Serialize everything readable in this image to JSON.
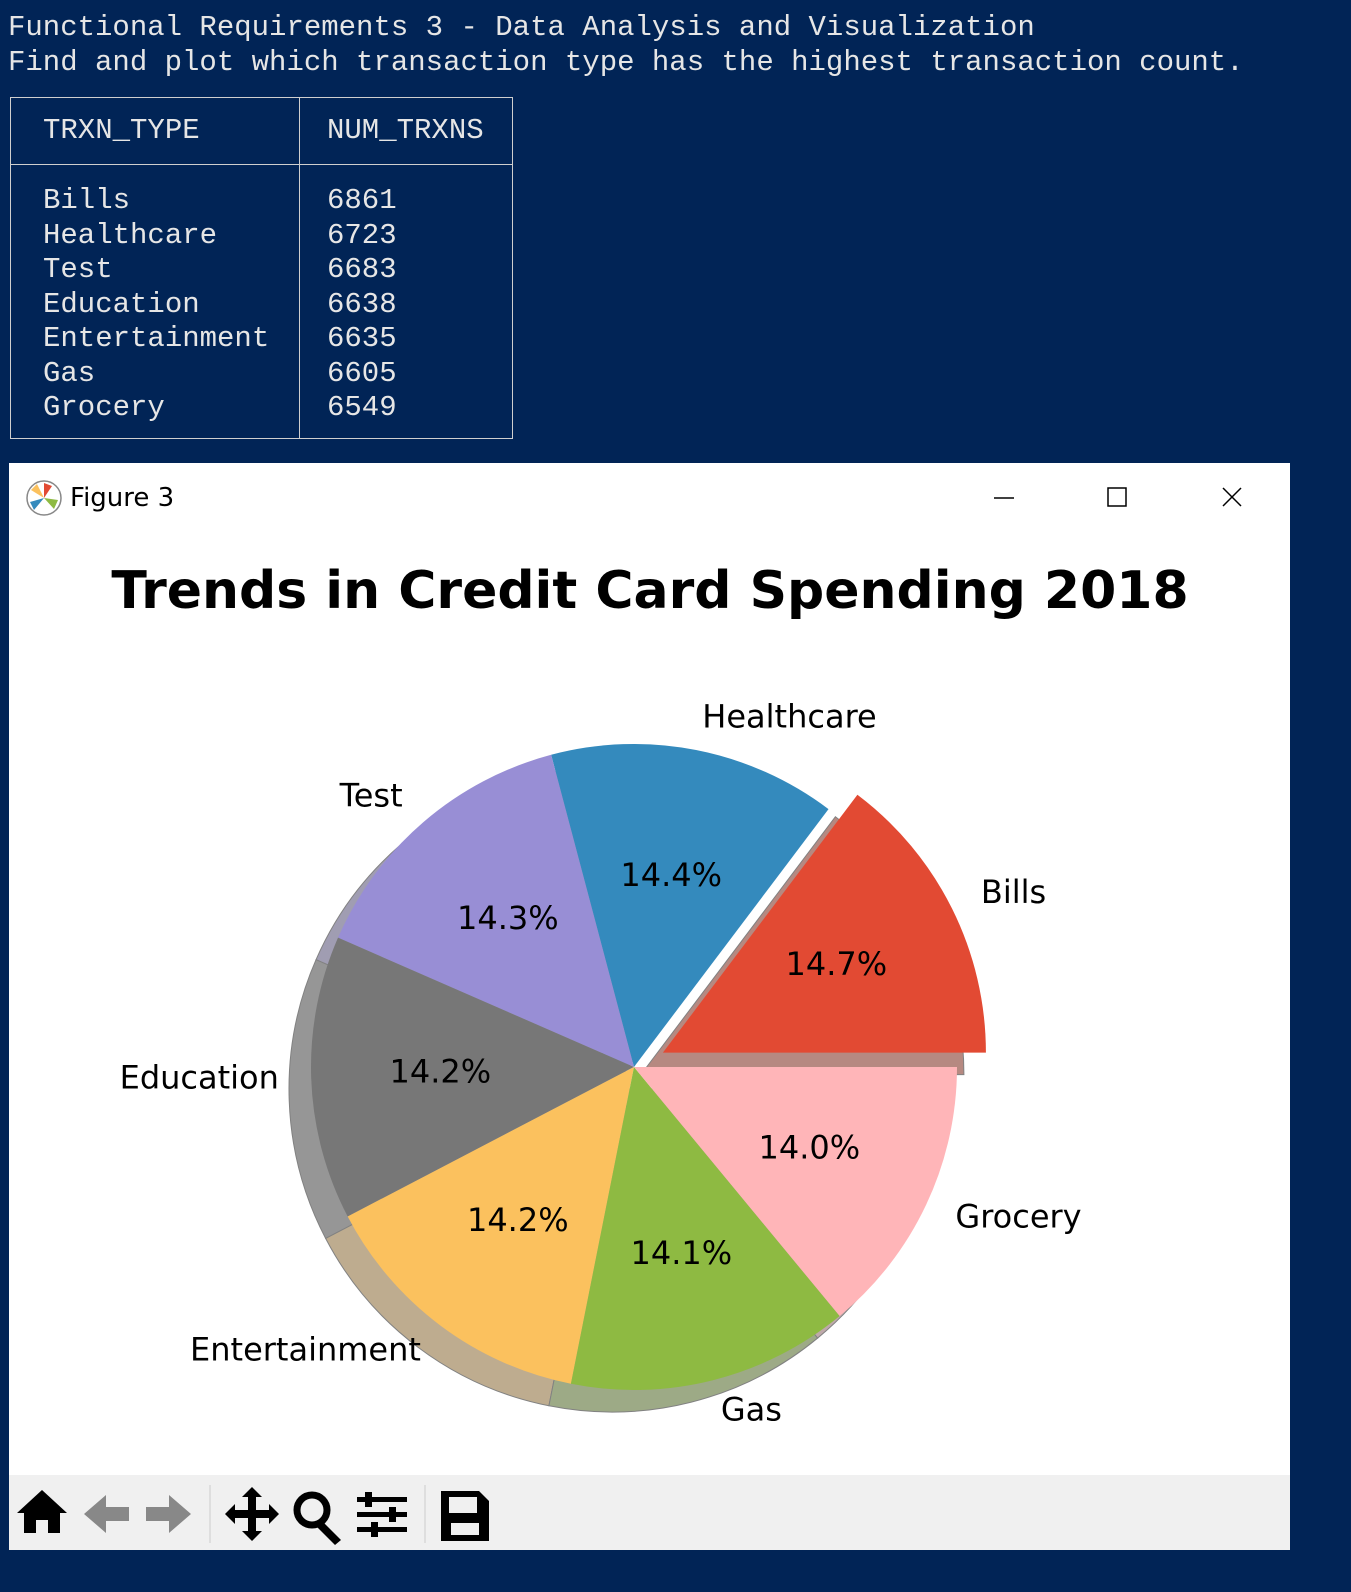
{
  "terminal": {
    "lines": [
      "Functional Requirements 3 - Data Analysis and Visualization",
      "Find and plot which transaction type has the highest transaction count."
    ],
    "table": {
      "header": [
        "TRXN_TYPE",
        "NUM_TRXNS"
      ],
      "rows": [
        [
          "Bills",
          6861
        ],
        [
          "Healthcare",
          6723
        ],
        [
          "Test",
          6683
        ],
        [
          "Education",
          6638
        ],
        [
          "Entertainment",
          6635
        ],
        [
          "Gas",
          6605
        ],
        [
          "Grocery",
          6549
        ]
      ]
    }
  },
  "window": {
    "title": "Figure 3"
  },
  "chart_data": {
    "type": "pie",
    "title": "Trends in Credit Card Spending 2018",
    "categories": [
      "Bills",
      "Healthcare",
      "Test",
      "Education",
      "Entertainment",
      "Gas",
      "Grocery"
    ],
    "values": [
      14.7,
      14.4,
      14.3,
      14.2,
      14.2,
      14.1,
      14.0
    ],
    "value_labels": [
      "14.7%",
      "14.4%",
      "14.3%",
      "14.2%",
      "14.2%",
      "14.1%",
      "14.0%"
    ],
    "colors": [
      "#E24A33",
      "#348ABD",
      "#988ED5",
      "#777777",
      "#FBC15E",
      "#8EBA42",
      "#FFB5B8"
    ],
    "explode": [
      0.1,
      0,
      0,
      0,
      0,
      0,
      0
    ],
    "shadow": true
  }
}
